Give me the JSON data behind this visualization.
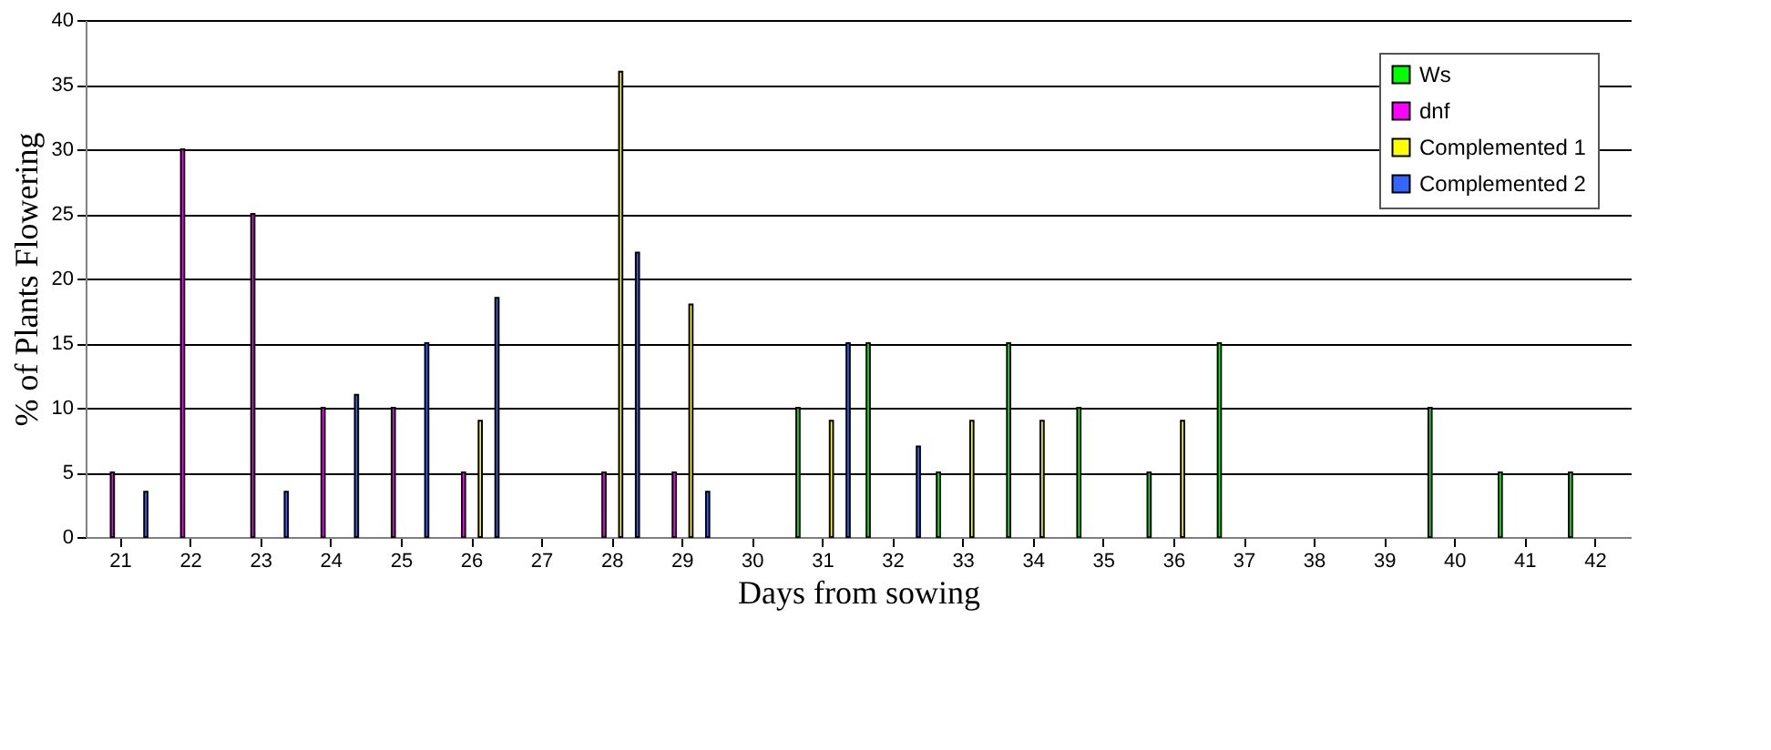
{
  "chart_data": {
    "type": "bar",
    "xlabel": "Days from sowing",
    "ylabel": "% of Plants Flowering",
    "categories": [
      "21",
      "22",
      "23",
      "24",
      "25",
      "26",
      "27",
      "28",
      "29",
      "30",
      "31",
      "32",
      "33",
      "34",
      "35",
      "36",
      "37",
      "38",
      "39",
      "40",
      "41",
      "42"
    ],
    "series": [
      {
        "name": "Ws",
        "color": "#00ff00",
        "values": [
          null,
          null,
          null,
          null,
          null,
          null,
          null,
          null,
          null,
          null,
          10,
          15,
          5,
          15,
          10,
          5,
          15,
          null,
          null,
          10,
          5,
          5
        ]
      },
      {
        "name": "dnf",
        "color": "#ff00ff",
        "values": [
          5,
          30,
          25,
          10,
          10,
          5,
          null,
          5,
          5,
          null,
          null,
          null,
          null,
          null,
          null,
          null,
          null,
          null,
          null,
          null,
          null,
          null
        ]
      },
      {
        "name": "Complemented 1",
        "color": "#ffff00",
        "values": [
          null,
          null,
          null,
          null,
          null,
          9,
          null,
          36,
          18,
          null,
          9,
          null,
          9,
          9,
          null,
          9,
          null,
          null,
          null,
          null,
          null,
          null
        ]
      },
      {
        "name": "Complemented 2",
        "color": "#3366ff",
        "values": [
          3.5,
          null,
          3.5,
          11,
          15,
          18.5,
          null,
          22,
          3.5,
          null,
          15,
          7,
          null,
          null,
          null,
          null,
          null,
          null,
          null,
          null,
          null,
          null
        ]
      }
    ],
    "ylim": [
      0,
      40
    ],
    "yticks": [
      0,
      5,
      10,
      15,
      20,
      25,
      30,
      35,
      40
    ],
    "grid": "y",
    "legend": "top right"
  }
}
